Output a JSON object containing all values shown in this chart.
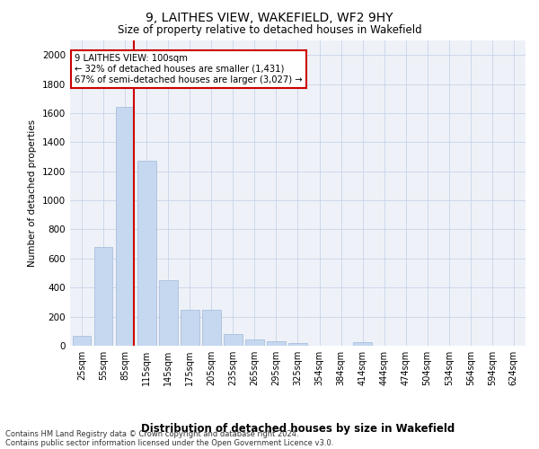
{
  "title1": "9, LAITHES VIEW, WAKEFIELD, WF2 9HY",
  "title2": "Size of property relative to detached houses in Wakefield",
  "xlabel": "Distribution of detached houses by size in Wakefield",
  "ylabel": "Number of detached properties",
  "categories": [
    "25sqm",
    "55sqm",
    "85sqm",
    "115sqm",
    "145sqm",
    "175sqm",
    "205sqm",
    "235sqm",
    "265sqm",
    "295sqm",
    "325sqm",
    "354sqm",
    "384sqm",
    "414sqm",
    "444sqm",
    "474sqm",
    "504sqm",
    "534sqm",
    "564sqm",
    "594sqm",
    "624sqm"
  ],
  "values": [
    65,
    680,
    1640,
    1270,
    450,
    250,
    250,
    80,
    45,
    30,
    20,
    0,
    0,
    25,
    0,
    0,
    0,
    0,
    0,
    0,
    0
  ],
  "bar_color": "#c5d8f0",
  "bar_edgecolor": "#a0b8d8",
  "annotation_text": "9 LAITHES VIEW: 100sqm\n← 32% of detached houses are smaller (1,431)\n67% of semi-detached houses are larger (3,027) →",
  "annotation_box_color": "#ffffff",
  "annotation_box_edgecolor": "#cc0000",
  "vline_color": "#cc0000",
  "ylim": [
    0,
    2100
  ],
  "yticks": [
    0,
    200,
    400,
    600,
    800,
    1000,
    1200,
    1400,
    1600,
    1800,
    2000
  ],
  "grid_color": "#c8d4e8",
  "footnote1": "Contains HM Land Registry data © Crown copyright and database right 2024.",
  "footnote2": "Contains public sector information licensed under the Open Government Licence v3.0.",
  "bg_color": "#eef2f8"
}
